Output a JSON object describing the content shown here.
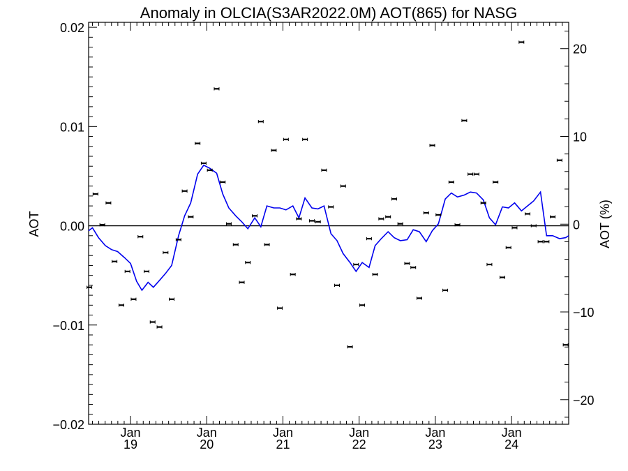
{
  "chart_data": {
    "type": "scatter",
    "title": "Anomaly in OLCIA(S3AR2022.0M) AOT(865) for NASG",
    "ylabel": "AOT",
    "y2label": "AOT (%)",
    "ylim": [
      -0.02,
      0.0205
    ],
    "y2lim": [
      -22.8,
      23.0
    ],
    "yticks": [
      -0.02,
      -0.01,
      0.0,
      0.01,
      0.02
    ],
    "ytick_labels": [
      "−0.02",
      "−0.01",
      "0.00",
      "0.01",
      "0.02"
    ],
    "y2ticks": [
      -20,
      -10,
      0,
      10,
      20
    ],
    "y2tick_labels": [
      "−20",
      "−10",
      "0",
      "10",
      "20"
    ],
    "xlim": [
      2018.45,
      2024.75
    ],
    "xtick_labels": [
      {
        "month": "Jan",
        "year": "19",
        "x": 2019.0
      },
      {
        "month": "Jan",
        "year": "20",
        "x": 2020.0
      },
      {
        "month": "Jan",
        "year": "21",
        "x": 2021.0
      },
      {
        "month": "Jan",
        "year": "22",
        "x": 2022.0
      },
      {
        "month": "Jan",
        "year": "23",
        "x": 2023.0
      },
      {
        "month": "Jan",
        "year": "24",
        "x": 2024.0
      }
    ],
    "zero_line": true,
    "colors": {
      "line": "#0000ee",
      "points": "#000000"
    },
    "series": [
      {
        "kind": "points",
        "points": [
          [
            2018.46,
            -0.0062
          ],
          [
            2018.54,
            0.0032
          ],
          [
            2018.63,
            0.0001
          ],
          [
            2018.71,
            0.0023
          ],
          [
            2018.79,
            -0.0036
          ],
          [
            2018.88,
            -0.008
          ],
          [
            2018.96,
            -0.0046
          ],
          [
            2019.04,
            -0.0074
          ],
          [
            2019.13,
            -0.0011
          ],
          [
            2019.21,
            -0.0046
          ],
          [
            2019.29,
            -0.0097
          ],
          [
            2019.38,
            -0.0102
          ],
          [
            2019.46,
            -0.0027
          ],
          [
            2019.54,
            -0.0074
          ],
          [
            2019.63,
            -0.0014
          ],
          [
            2019.71,
            0.0035
          ],
          [
            2019.79,
            0.0009
          ],
          [
            2019.88,
            0.0083
          ],
          [
            2019.96,
            0.0063
          ],
          [
            2020.04,
            0.0056
          ],
          [
            2020.13,
            0.0138
          ],
          [
            2020.21,
            0.0044
          ],
          [
            2020.29,
            0.0002
          ],
          [
            2020.38,
            -0.0019
          ],
          [
            2020.46,
            -0.0057
          ],
          [
            2020.54,
            -0.0037
          ],
          [
            2020.63,
            0.001
          ],
          [
            2020.71,
            0.0105
          ],
          [
            2020.79,
            -0.0019
          ],
          [
            2020.88,
            0.0076
          ],
          [
            2020.96,
            -0.0083
          ],
          [
            2021.04,
            0.0087
          ],
          [
            2021.13,
            -0.0049
          ],
          [
            2021.21,
            0.0007
          ],
          [
            2021.29,
            0.0087
          ],
          [
            2021.38,
            0.0005
          ],
          [
            2021.46,
            0.0004
          ],
          [
            2021.54,
            0.0056
          ],
          [
            2021.63,
            0.0019
          ],
          [
            2021.71,
            -0.006
          ],
          [
            2021.79,
            0.004
          ],
          [
            2021.88,
            -0.0122
          ],
          [
            2021.96,
            -0.0039
          ],
          [
            2022.04,
            -0.008
          ],
          [
            2022.13,
            -0.0013
          ],
          [
            2022.21,
            -0.0049
          ],
          [
            2022.29,
            0.0007
          ],
          [
            2022.38,
            0.0009
          ],
          [
            2022.46,
            0.0027
          ],
          [
            2022.54,
            0.0002
          ],
          [
            2022.63,
            -0.0038
          ],
          [
            2022.71,
            -0.0042
          ],
          [
            2022.79,
            -0.0073
          ],
          [
            2022.88,
            0.0013
          ],
          [
            2022.96,
            0.0081
          ],
          [
            2023.04,
            0.0011
          ],
          [
            2023.13,
            -0.0065
          ],
          [
            2023.21,
            0.0044
          ],
          [
            2023.29,
            0.0001
          ],
          [
            2023.38,
            0.0106
          ],
          [
            2023.46,
            0.0052
          ],
          [
            2023.54,
            0.0052
          ],
          [
            2023.63,
            0.0023
          ],
          [
            2023.71,
            -0.0039
          ],
          [
            2023.79,
            0.0044
          ],
          [
            2023.88,
            -0.0052
          ],
          [
            2023.96,
            -0.0022
          ],
          [
            2024.04,
            -0.0002
          ],
          [
            2024.13,
            0.0185
          ],
          [
            2024.21,
            0.0012
          ],
          [
            2024.29,
            0.0
          ],
          [
            2024.38,
            -0.0016
          ],
          [
            2024.46,
            -0.0016
          ],
          [
            2024.54,
            0.0009
          ],
          [
            2024.63,
            0.0066
          ],
          [
            2024.71,
            -0.012
          ]
        ]
      },
      {
        "kind": "line",
        "points": [
          [
            2018.45,
            -0.0005
          ],
          [
            2018.5,
            -0.0002
          ],
          [
            2018.58,
            -0.0012
          ],
          [
            2018.67,
            -0.002
          ],
          [
            2018.75,
            -0.0024
          ],
          [
            2018.83,
            -0.0026
          ],
          [
            2018.92,
            -0.0032
          ],
          [
            2019.0,
            -0.0038
          ],
          [
            2019.08,
            -0.0056
          ],
          [
            2019.15,
            -0.0065
          ],
          [
            2019.23,
            -0.0057
          ],
          [
            2019.3,
            -0.0062
          ],
          [
            2019.38,
            -0.0055
          ],
          [
            2019.46,
            -0.0048
          ],
          [
            2019.54,
            -0.004
          ],
          [
            2019.63,
            -0.001
          ],
          [
            2019.71,
            0.001
          ],
          [
            2019.79,
            0.0023
          ],
          [
            2019.88,
            0.0052
          ],
          [
            2019.96,
            0.0061
          ],
          [
            2020.04,
            0.0058
          ],
          [
            2020.13,
            0.0053
          ],
          [
            2020.21,
            0.0032
          ],
          [
            2020.29,
            0.0018
          ],
          [
            2020.38,
            0.001
          ],
          [
            2020.46,
            0.0004
          ],
          [
            2020.54,
            -0.0003
          ],
          [
            2020.63,
            0.0008
          ],
          [
            2020.71,
            -0.0001
          ],
          [
            2020.79,
            0.002
          ],
          [
            2020.88,
            0.0018
          ],
          [
            2020.96,
            0.0018
          ],
          [
            2021.04,
            0.0016
          ],
          [
            2021.13,
            0.002
          ],
          [
            2021.21,
            0.0008
          ],
          [
            2021.29,
            0.0028
          ],
          [
            2021.38,
            0.0018
          ],
          [
            2021.46,
            0.0017
          ],
          [
            2021.54,
            0.002
          ],
          [
            2021.63,
            -0.0008
          ],
          [
            2021.71,
            -0.0015
          ],
          [
            2021.79,
            -0.0028
          ],
          [
            2021.88,
            -0.0037
          ],
          [
            2021.96,
            -0.0046
          ],
          [
            2022.04,
            -0.0037
          ],
          [
            2022.13,
            -0.0042
          ],
          [
            2022.21,
            -0.002
          ],
          [
            2022.29,
            -0.0013
          ],
          [
            2022.38,
            -0.0006
          ],
          [
            2022.46,
            -0.0012
          ],
          [
            2022.54,
            -0.0015
          ],
          [
            2022.63,
            -0.0014
          ],
          [
            2022.71,
            -0.0004
          ],
          [
            2022.79,
            -0.0006
          ],
          [
            2022.88,
            -0.0016
          ],
          [
            2022.96,
            -0.0005
          ],
          [
            2023.04,
            0.0002
          ],
          [
            2023.13,
            0.0027
          ],
          [
            2023.21,
            0.0033
          ],
          [
            2023.29,
            0.0029
          ],
          [
            2023.38,
            0.0031
          ],
          [
            2023.46,
            0.0034
          ],
          [
            2023.54,
            0.0033
          ],
          [
            2023.63,
            0.0026
          ],
          [
            2023.71,
            0.0008
          ],
          [
            2023.79,
            0.0001
          ],
          [
            2023.88,
            0.0019
          ],
          [
            2023.96,
            0.0018
          ],
          [
            2024.04,
            0.0023
          ],
          [
            2024.13,
            0.0015
          ],
          [
            2024.21,
            0.002
          ],
          [
            2024.29,
            0.0025
          ],
          [
            2024.38,
            0.0034
          ],
          [
            2024.46,
            -0.001
          ],
          [
            2024.54,
            -0.001
          ],
          [
            2024.63,
            -0.0013
          ],
          [
            2024.71,
            -0.0012
          ],
          [
            2024.75,
            -0.001
          ]
        ]
      }
    ]
  }
}
